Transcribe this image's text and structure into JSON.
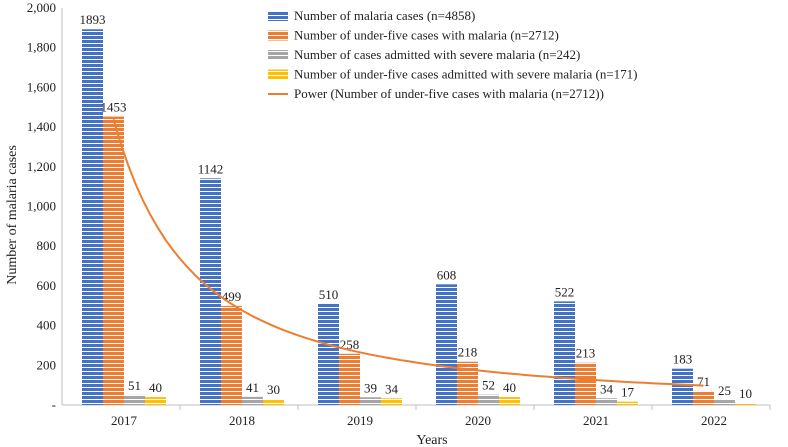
{
  "chart_data": {
    "type": "bar",
    "xlabel": "Years",
    "ylabel": "Number of malaria cases",
    "ylim": [
      0,
      2000
    ],
    "ytick_step": 200,
    "ytick_labels": [
      "-",
      "200",
      "400",
      "600",
      "800",
      "1,000",
      "1,200",
      "1,400",
      "1,600",
      "1,800",
      "2,000"
    ],
    "categories": [
      "2017",
      "2018",
      "2019",
      "2020",
      "2021",
      "2022"
    ],
    "series": [
      {
        "name": "Number of malaria cases (n=4858)",
        "values": [
          1893,
          1142,
          510,
          608,
          522,
          183
        ],
        "color": "#4472c4",
        "stripe": "#ffffff"
      },
      {
        "name": "Number of under-five cases with malaria (n=2712)",
        "values": [
          1453,
          499,
          258,
          218,
          213,
          71
        ],
        "color": "#ed7d31",
        "stripe": "#ffffff"
      },
      {
        "name": "Number of cases admitted with severe malaria (n=242)",
        "values": [
          51,
          41,
          39,
          52,
          34,
          25
        ],
        "color": "#a5a5a5",
        "stripe": "#ffffff"
      },
      {
        "name": "Number of under-five cases admitted with severe malaria (n=171)",
        "values": [
          40,
          30,
          34,
          40,
          17,
          10
        ],
        "color": "#ffc000",
        "stripe": "#ffffff"
      }
    ],
    "trendline": {
      "name": "Power (Number of under-five cases with malaria (n=2712))",
      "type": "power",
      "based_on_series": 1,
      "coefficient": 1440,
      "exponent": -1.5,
      "color": "#ed7d31"
    },
    "legend_position": "top-right"
  }
}
